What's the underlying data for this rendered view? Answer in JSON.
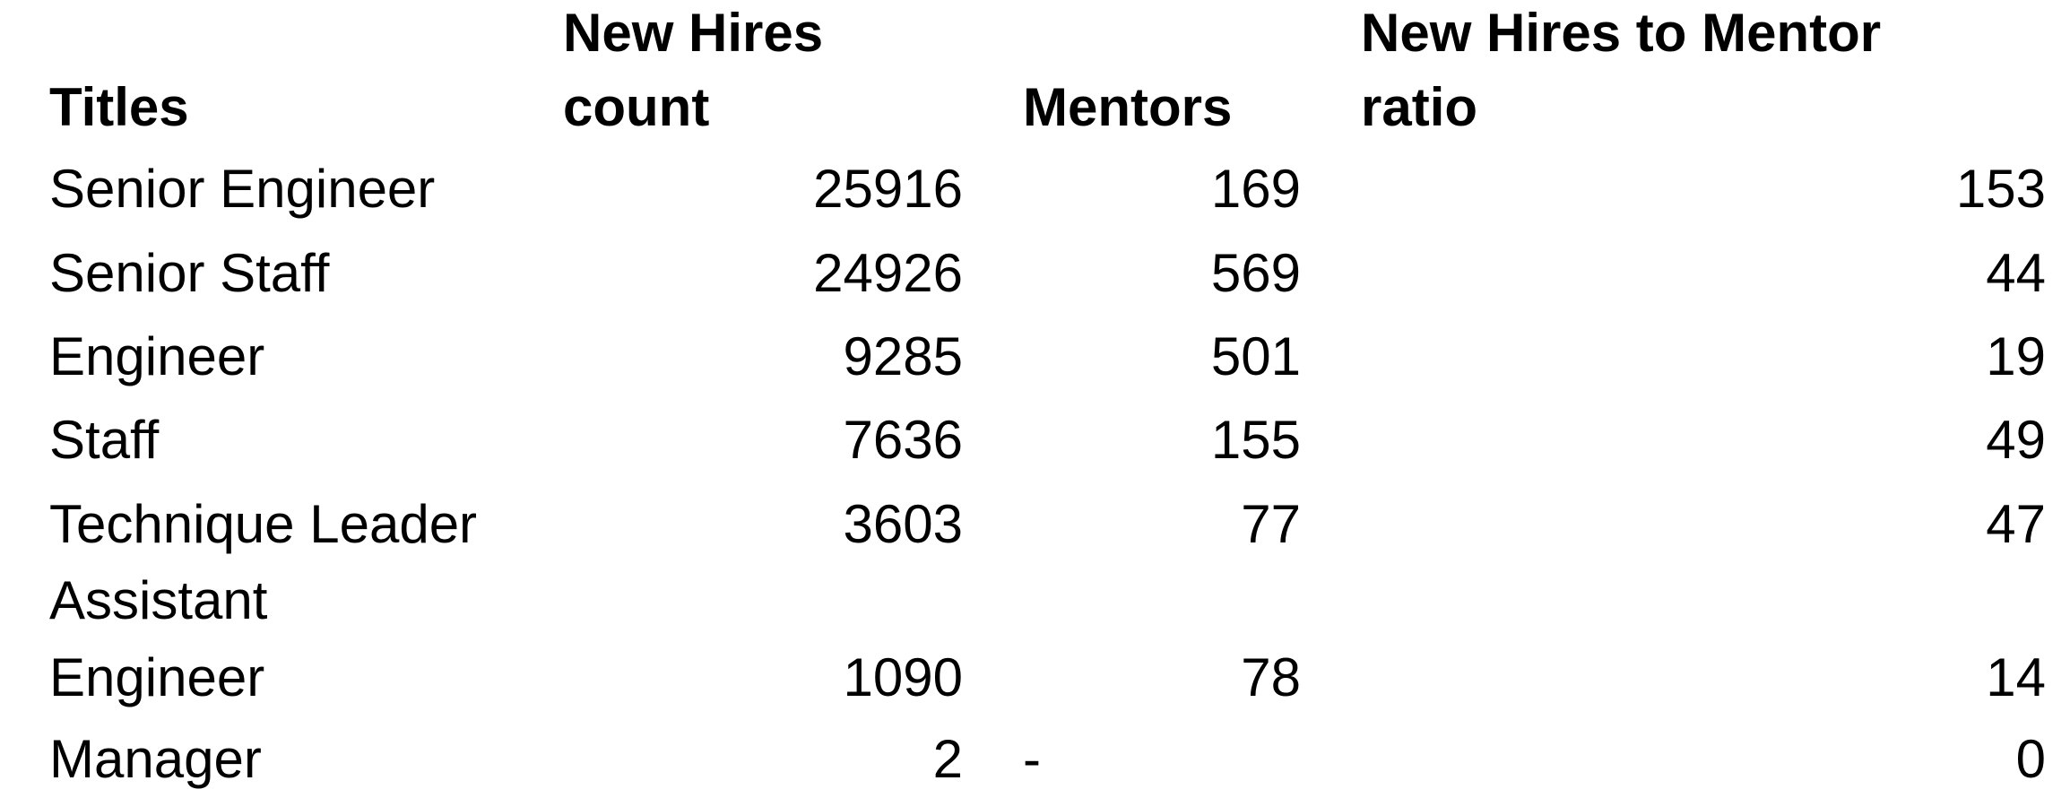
{
  "table": {
    "headers": {
      "titles": "Titles",
      "new_hires_line1": "New Hires",
      "new_hires_line2": "count",
      "mentors": "Mentors",
      "ratio_line1": "New Hires to Mentor",
      "ratio_line2": "ratio"
    },
    "rows": [
      {
        "title": "Senior Engineer",
        "new_hires": "25916",
        "mentors": "169",
        "ratio": "153"
      },
      {
        "title": "Senior Staff",
        "new_hires": "24926",
        "mentors": "569",
        "ratio": "44"
      },
      {
        "title": "Engineer",
        "new_hires": "9285",
        "mentors": "501",
        "ratio": "19"
      },
      {
        "title": "Staff",
        "new_hires": "7636",
        "mentors": "155",
        "ratio": "49"
      },
      {
        "title": "Technique Leader",
        "new_hires": "3603",
        "mentors": "77",
        "ratio": "47"
      },
      {
        "title_line1": "Assistant",
        "title_line2": "Engineer",
        "new_hires": "1090",
        "mentors": "78",
        "ratio": "14"
      },
      {
        "title": "Manager",
        "new_hires": "2",
        "mentors": "-",
        "ratio": "0"
      }
    ]
  }
}
